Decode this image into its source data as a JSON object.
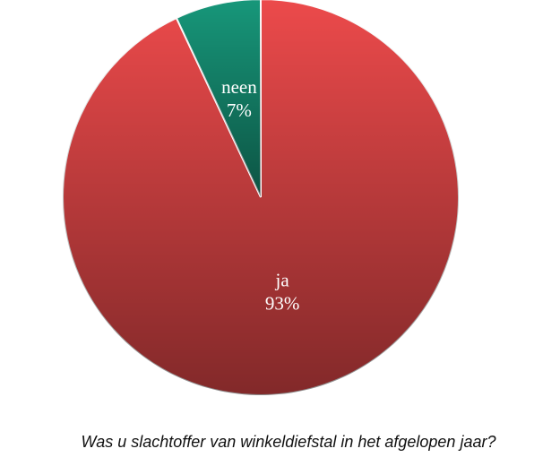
{
  "chart_data": {
    "type": "pie",
    "title": "Was u slachtoffer van winkeldiefstal in het afgelopen jaar?",
    "categories": [
      "ja",
      "neen"
    ],
    "values": [
      93,
      7
    ],
    "value_labels": [
      "93%",
      "7%"
    ],
    "colors": [
      "#ec4a4b",
      "#17977a"
    ]
  }
}
